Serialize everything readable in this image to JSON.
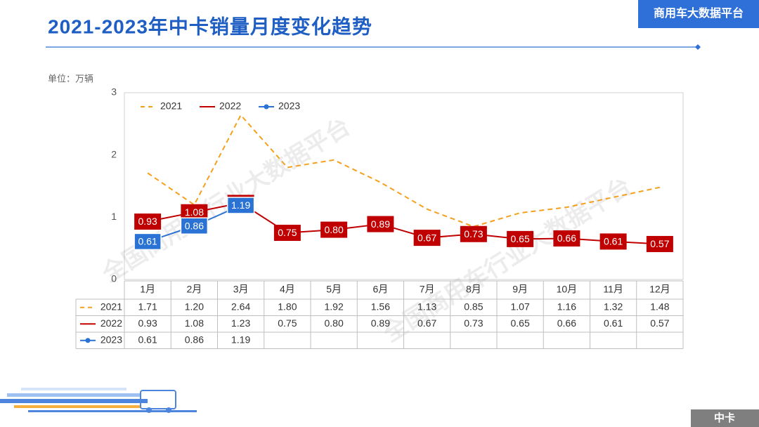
{
  "header": {
    "badge": "商用车大数据平台"
  },
  "footer": {
    "tag": "中卡"
  },
  "watermark": "全国商用车行业大数据平台",
  "chart_data": {
    "type": "line",
    "title": "2021-2023年中卡销量月度变化趋势",
    "unit": "单位：万辆",
    "categories": [
      "1月",
      "2月",
      "3月",
      "4月",
      "5月",
      "6月",
      "7月",
      "8月",
      "9月",
      "10月",
      "11月",
      "12月"
    ],
    "ylim": [
      0,
      3
    ],
    "yticks": [
      0,
      1,
      2,
      3
    ],
    "grid": false,
    "legend": "top-left",
    "series": [
      {
        "name": "2021",
        "color": "#f5a01e",
        "dashed": true,
        "markers": false,
        "data_labels": false,
        "values": [
          1.71,
          1.2,
          2.64,
          1.8,
          1.92,
          1.56,
          1.13,
          0.85,
          1.07,
          1.16,
          1.32,
          1.48
        ],
        "value_labels": [
          "1.71",
          "1.20",
          "2.64",
          "1.80",
          "1.92",
          "1.56",
          "1.13",
          "0.85",
          "1.07",
          "1.16",
          "1.32",
          "1.48"
        ]
      },
      {
        "name": "2022",
        "color": "#c00000",
        "dashed": false,
        "markers": false,
        "data_labels": true,
        "values": [
          0.93,
          1.08,
          1.23,
          0.75,
          0.8,
          0.89,
          0.67,
          0.73,
          0.65,
          0.66,
          0.61,
          0.57
        ],
        "value_labels": [
          "0.93",
          "1.08",
          "1.23",
          "0.75",
          "0.80",
          "0.89",
          "0.67",
          "0.73",
          "0.65",
          "0.66",
          "0.61",
          "0.57"
        ]
      },
      {
        "name": "2023",
        "color": "#2a72d4",
        "dashed": false,
        "markers": true,
        "data_labels": true,
        "values": [
          0.61,
          0.86,
          1.19,
          null,
          null,
          null,
          null,
          null,
          null,
          null,
          null,
          null
        ],
        "value_labels": [
          "0.61",
          "0.86",
          "1.19",
          null,
          null,
          null,
          null,
          null,
          null,
          null,
          null,
          null
        ]
      }
    ]
  }
}
